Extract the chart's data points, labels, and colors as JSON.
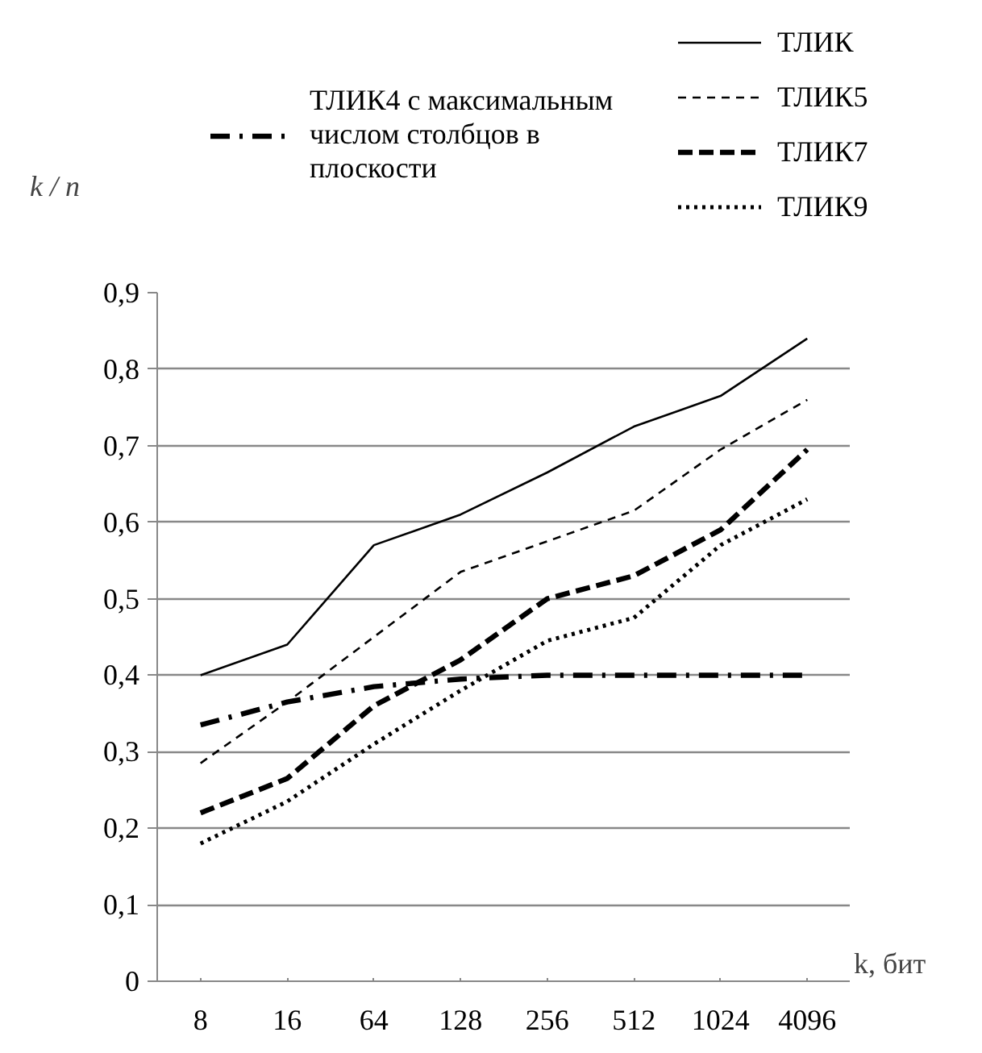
{
  "chart_data": {
    "type": "line",
    "xlabel": "k, бит",
    "ylabel": "k / n",
    "categories": [
      "8",
      "16",
      "64",
      "128",
      "256",
      "512",
      "1024",
      "4096"
    ],
    "ylim": [
      0,
      0.9
    ],
    "yticks": [
      {
        "value": 0,
        "label": "0"
      },
      {
        "value": 0.1,
        "label": "0,1"
      },
      {
        "value": 0.2,
        "label": "0,2"
      },
      {
        "value": 0.3,
        "label": "0,3"
      },
      {
        "value": 0.4,
        "label": "0,4"
      },
      {
        "value": 0.5,
        "label": "0,5"
      },
      {
        "value": 0.6,
        "label": "0,6"
      },
      {
        "value": 0.7,
        "label": "0,7"
      },
      {
        "value": 0.8,
        "label": "0,8"
      },
      {
        "value": 0.9,
        "label": "0,9"
      }
    ],
    "grid": "y",
    "legend": "top",
    "marker": "none",
    "series": [
      {
        "name": "ТЛИК4 с максимальным числом столбцов в плоскости",
        "color": "#000000",
        "line_style": "dashdot",
        "values": [
          0.335,
          0.365,
          0.385,
          0.395,
          0.4,
          0.4,
          0.4,
          0.4
        ]
      },
      {
        "name": "ТЛИК",
        "color": "#000000",
        "line_style": "solid",
        "values": [
          0.4,
          0.44,
          0.57,
          0.61,
          0.665,
          0.725,
          0.765,
          0.84
        ]
      },
      {
        "name": "ТЛИК5",
        "color": "#000000",
        "line_style": "dashed",
        "values": [
          0.285,
          0.365,
          0.45,
          0.535,
          0.575,
          0.615,
          0.695,
          0.76
        ]
      },
      {
        "name": "ТЛИК7",
        "color": "#000000",
        "line_style": "dashed_bold",
        "values": [
          0.22,
          0.265,
          0.36,
          0.42,
          0.5,
          0.53,
          0.59,
          0.695
        ]
      },
      {
        "name": "ТЛИК9",
        "color": "#000000",
        "line_style": "dotted",
        "values": [
          0.18,
          0.235,
          0.31,
          0.38,
          0.445,
          0.475,
          0.57,
          0.63
        ]
      }
    ]
  }
}
